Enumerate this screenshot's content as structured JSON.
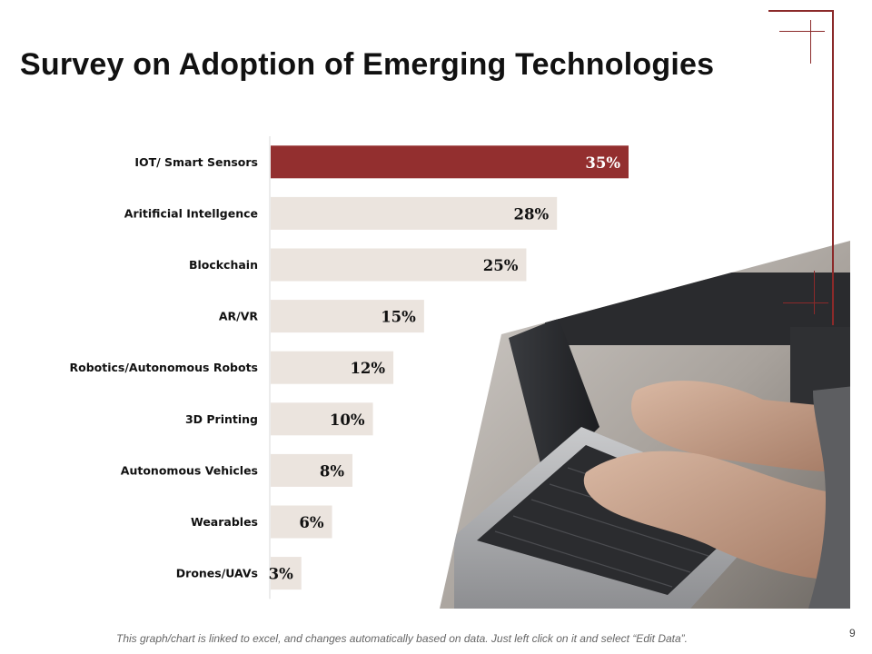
{
  "slide": {
    "title": "Survey on Adoption of Emerging Technologies",
    "footnote": "This graph/chart is linked to excel, and changes automatically based on data. Just left click on it and select “Edit Data”.",
    "page_number": "9"
  },
  "colors": {
    "highlight_bar": "#932f2f",
    "bar": "#ebe4de",
    "accent": "#8b2a2a",
    "text": "#111111"
  },
  "chart_data": {
    "type": "bar",
    "orientation": "horizontal",
    "title": "",
    "xlabel": "",
    "ylabel": "",
    "xlim": [
      0,
      35
    ],
    "grid": false,
    "categories": [
      "IOT/ Smart Sensors",
      "Aritificial Intellgence",
      "Blockchain",
      "AR/VR",
      "Robotics/Autonomous Robots",
      "3D Printing",
      "Autonomous Vehicles",
      "Wearables",
      "Drones/UAVs"
    ],
    "values": [
      35,
      28,
      25,
      15,
      12,
      10,
      8,
      6,
      3
    ],
    "labels": [
      "35%",
      "28%",
      "25%",
      "15%",
      "12%",
      "10%",
      "8%",
      "6%",
      "3%"
    ],
    "highlight_index": 0
  }
}
